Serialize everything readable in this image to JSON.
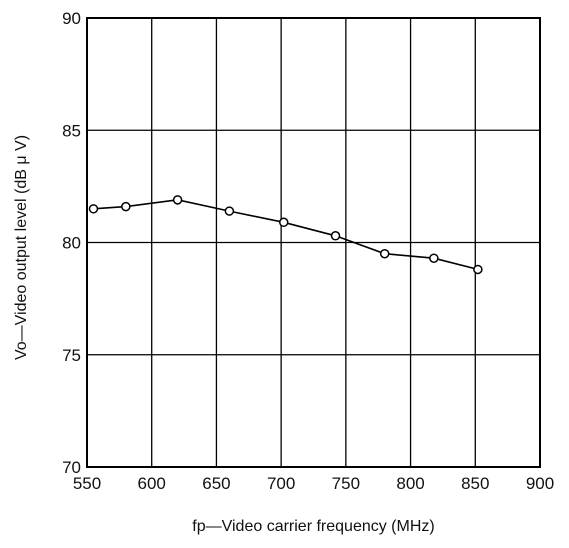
{
  "chart_data": {
    "type": "line",
    "title": "",
    "xlabel": "fp—Video carrier frequency (MHz)",
    "ylabel": "Vo—Video output level (dB μ V)",
    "xlim": [
      550,
      900
    ],
    "ylim": [
      70,
      90
    ],
    "x_ticks": [
      550,
      600,
      650,
      700,
      750,
      800,
      850,
      900
    ],
    "y_ticks": [
      70,
      75,
      80,
      85,
      90
    ],
    "x_tick_labels": [
      "550",
      "600",
      "650",
      "700",
      "750",
      "800",
      "850",
      "900"
    ],
    "y_tick_labels": [
      "70",
      "75",
      "80",
      "85",
      "90"
    ],
    "grid": true,
    "legend": "none",
    "series": [
      {
        "marker": "open-circle",
        "x": [
          555,
          580,
          620,
          660,
          702,
          742,
          780,
          818,
          852
        ],
        "y": [
          81.5,
          81.6,
          81.9,
          81.4,
          80.9,
          80.3,
          79.5,
          79.3,
          78.8
        ]
      }
    ]
  }
}
